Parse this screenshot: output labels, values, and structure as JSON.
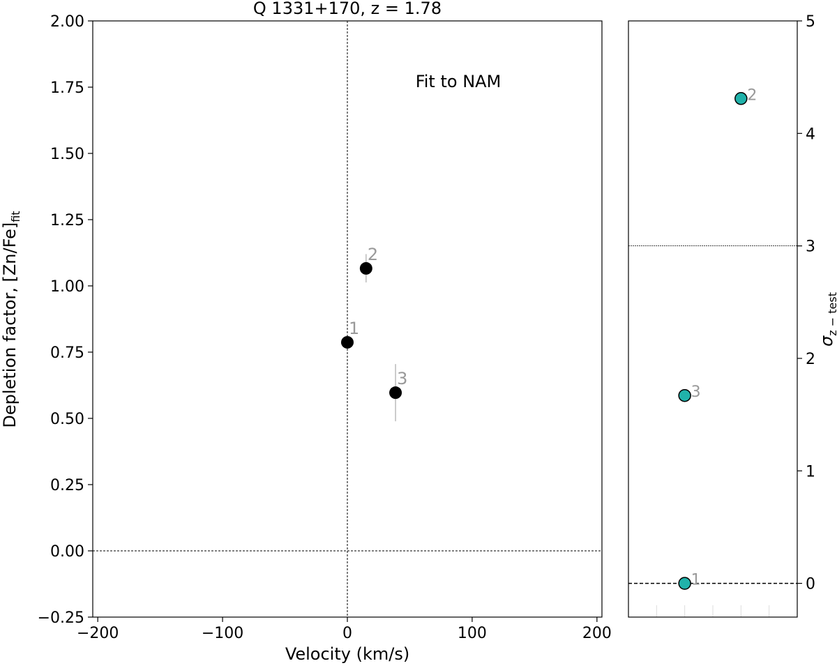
{
  "chart_data": [
    {
      "type": "scatter",
      "title": "Q 1331+170, z = 1.78",
      "xlabel": "Velocity (km/s)",
      "ylabel_main": "Depletion factor, [Zn/Fe]",
      "ylabel_sub": "fit",
      "annotation": "Fit to NAM",
      "xlim": [
        -204,
        204
      ],
      "ylim": [
        -0.25,
        2.0
      ],
      "xticks": [
        -200,
        -100,
        0,
        100,
        200
      ],
      "xtick_labels": [
        "−200",
        "−100",
        "0",
        "100",
        "200"
      ],
      "yticks": [
        -0.25,
        0,
        0.25,
        0.5,
        0.75,
        1.0,
        1.25,
        1.5,
        1.75,
        2.0
      ],
      "ytick_labels": [
        "−0.25",
        "0.00",
        "0.25",
        "0.50",
        "0.75",
        "1.00",
        "1.25",
        "1.50",
        "1.75",
        "2.00"
      ],
      "reference_lines": {
        "x": 0,
        "y": 0
      },
      "points": [
        {
          "label": "1",
          "x": 0,
          "y": 0.787,
          "err_low": 0.787,
          "err_high": 0.787
        },
        {
          "label": "2",
          "x": 15,
          "y": 1.066,
          "err_low": 1.013,
          "err_high": 1.12
        },
        {
          "label": "3",
          "x": 38.6,
          "y": 0.597,
          "err_low": 0.489,
          "err_high": 0.705
        }
      ],
      "colors": {
        "marker": "#000000",
        "errorbar": "#bbbbbb",
        "label": "#999999",
        "annotation": "#aaaaaa"
      }
    },
    {
      "type": "scatter",
      "ylabel_main": "σ",
      "ylabel_sub": "z − test",
      "xlim": [
        0,
        6
      ],
      "ylim": [
        -0.3,
        5
      ],
      "xticks": [
        1,
        2,
        3,
        4,
        5
      ],
      "yticks": [
        0,
        1,
        2,
        3,
        4,
        5
      ],
      "ytick_labels": [
        "0",
        "1",
        "2",
        "3",
        "4",
        "5"
      ],
      "reference_lines": {
        "dashed_y": 0,
        "dotted_y": 3
      },
      "points": [
        {
          "label": "1",
          "x": 2,
          "y": 0
        },
        {
          "label": "2",
          "x": 4,
          "y": 4.31
        },
        {
          "label": "3",
          "x": 2,
          "y": 1.67
        }
      ],
      "colors": {
        "marker": "#20b2aa",
        "edge": "#000000",
        "label": "#999999"
      }
    }
  ]
}
